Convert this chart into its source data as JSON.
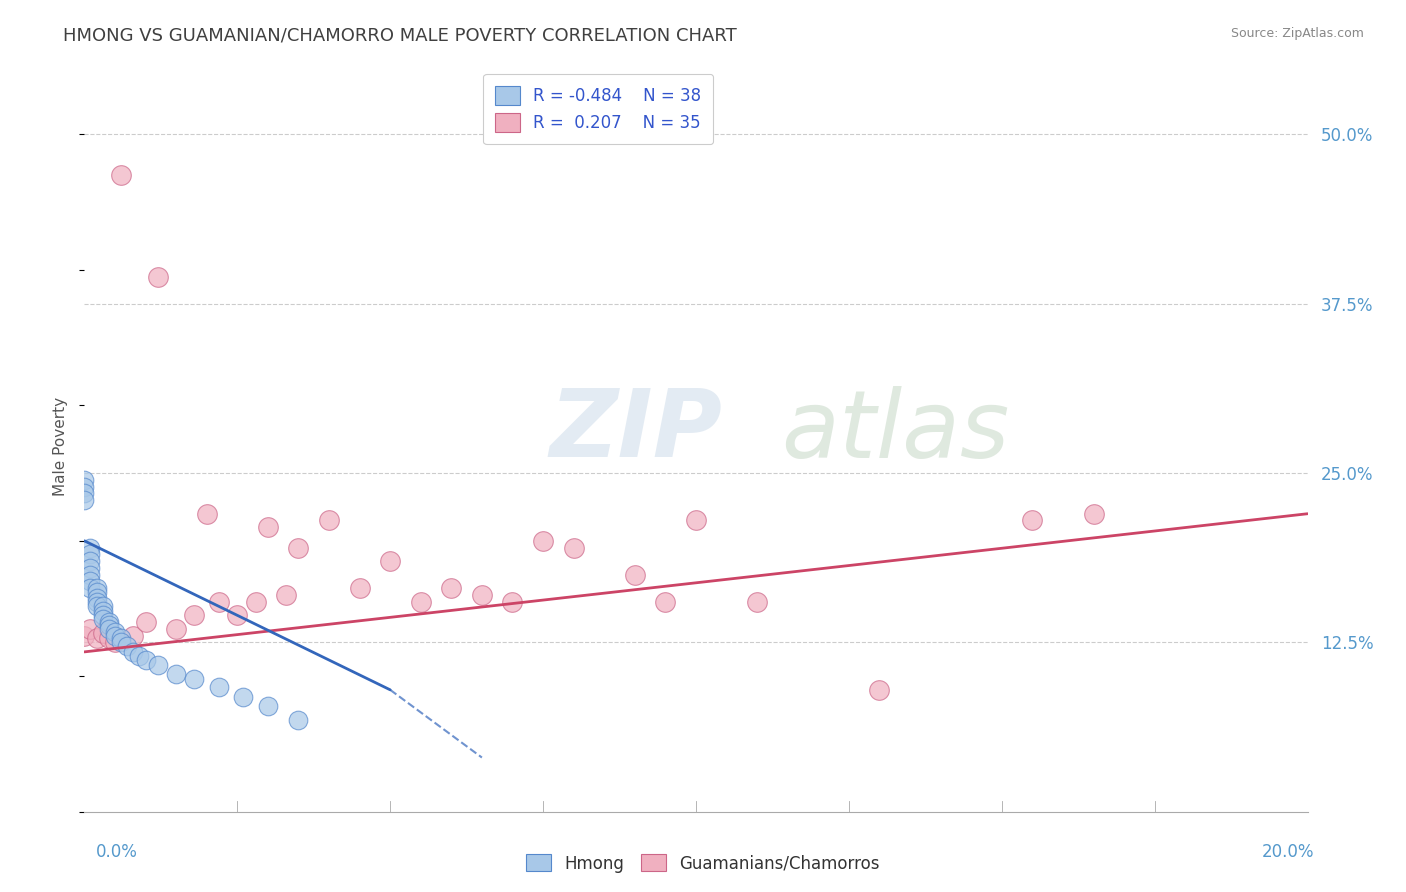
{
  "title": "HMONG VS GUAMANIAN/CHAMORRO MALE POVERTY CORRELATION CHART",
  "source": "Source: ZipAtlas.com",
  "ylabel": "Male Poverty",
  "xmin": 0.0,
  "xmax": 0.2,
  "ymin": 0.0,
  "ymax": 0.54,
  "hmong_color": "#a8c8e8",
  "hmong_edge": "#5588cc",
  "guam_color": "#f0b0c0",
  "guam_edge": "#cc6688",
  "trend_hmong_color": "#3366bb",
  "trend_guam_color": "#cc4466",
  "background_color": "#ffffff",
  "grid_color": "#cccccc",
  "title_color": "#404040",
  "axis_label_color": "#5599cc",
  "watermark_zip": "ZIP",
  "watermark_atlas": "atlas",
  "hmong_x": [
    0.0,
    0.0,
    0.0,
    0.0,
    0.001,
    0.001,
    0.001,
    0.001,
    0.001,
    0.001,
    0.001,
    0.002,
    0.002,
    0.002,
    0.002,
    0.002,
    0.003,
    0.003,
    0.003,
    0.003,
    0.004,
    0.004,
    0.004,
    0.005,
    0.005,
    0.006,
    0.006,
    0.007,
    0.008,
    0.009,
    0.01,
    0.012,
    0.015,
    0.018,
    0.022,
    0.026,
    0.03,
    0.035
  ],
  "hmong_y": [
    0.245,
    0.24,
    0.235,
    0.23,
    0.195,
    0.19,
    0.185,
    0.18,
    0.175,
    0.17,
    0.165,
    0.165,
    0.162,
    0.158,
    0.155,
    0.152,
    0.152,
    0.148,
    0.145,
    0.142,
    0.14,
    0.138,
    0.135,
    0.133,
    0.13,
    0.128,
    0.125,
    0.122,
    0.118,
    0.115,
    0.112,
    0.108,
    0.102,
    0.098,
    0.092,
    0.085,
    0.078,
    0.068
  ],
  "guam_x": [
    0.0,
    0.001,
    0.002,
    0.003,
    0.004,
    0.005,
    0.006,
    0.008,
    0.01,
    0.012,
    0.015,
    0.018,
    0.02,
    0.022,
    0.025,
    0.028,
    0.03,
    0.033,
    0.035,
    0.04,
    0.045,
    0.05,
    0.055,
    0.06,
    0.065,
    0.07,
    0.075,
    0.08,
    0.09,
    0.095,
    0.1,
    0.11,
    0.13,
    0.155,
    0.165
  ],
  "guam_y": [
    0.13,
    0.135,
    0.128,
    0.132,
    0.128,
    0.125,
    0.47,
    0.13,
    0.14,
    0.395,
    0.135,
    0.145,
    0.22,
    0.155,
    0.145,
    0.155,
    0.21,
    0.16,
    0.195,
    0.215,
    0.165,
    0.185,
    0.155,
    0.165,
    0.16,
    0.155,
    0.2,
    0.195,
    0.175,
    0.155,
    0.215,
    0.155,
    0.09,
    0.215,
    0.22
  ],
  "hmong_trend_x0": 0.0,
  "hmong_trend_y0": 0.2,
  "hmong_trend_x1": 0.05,
  "hmong_trend_y1": 0.09,
  "hmong_trend_dashed_x1": 0.065,
  "hmong_trend_dashed_y1": 0.04,
  "guam_trend_x0": 0.0,
  "guam_trend_y0": 0.118,
  "guam_trend_x1": 0.2,
  "guam_trend_y1": 0.22
}
